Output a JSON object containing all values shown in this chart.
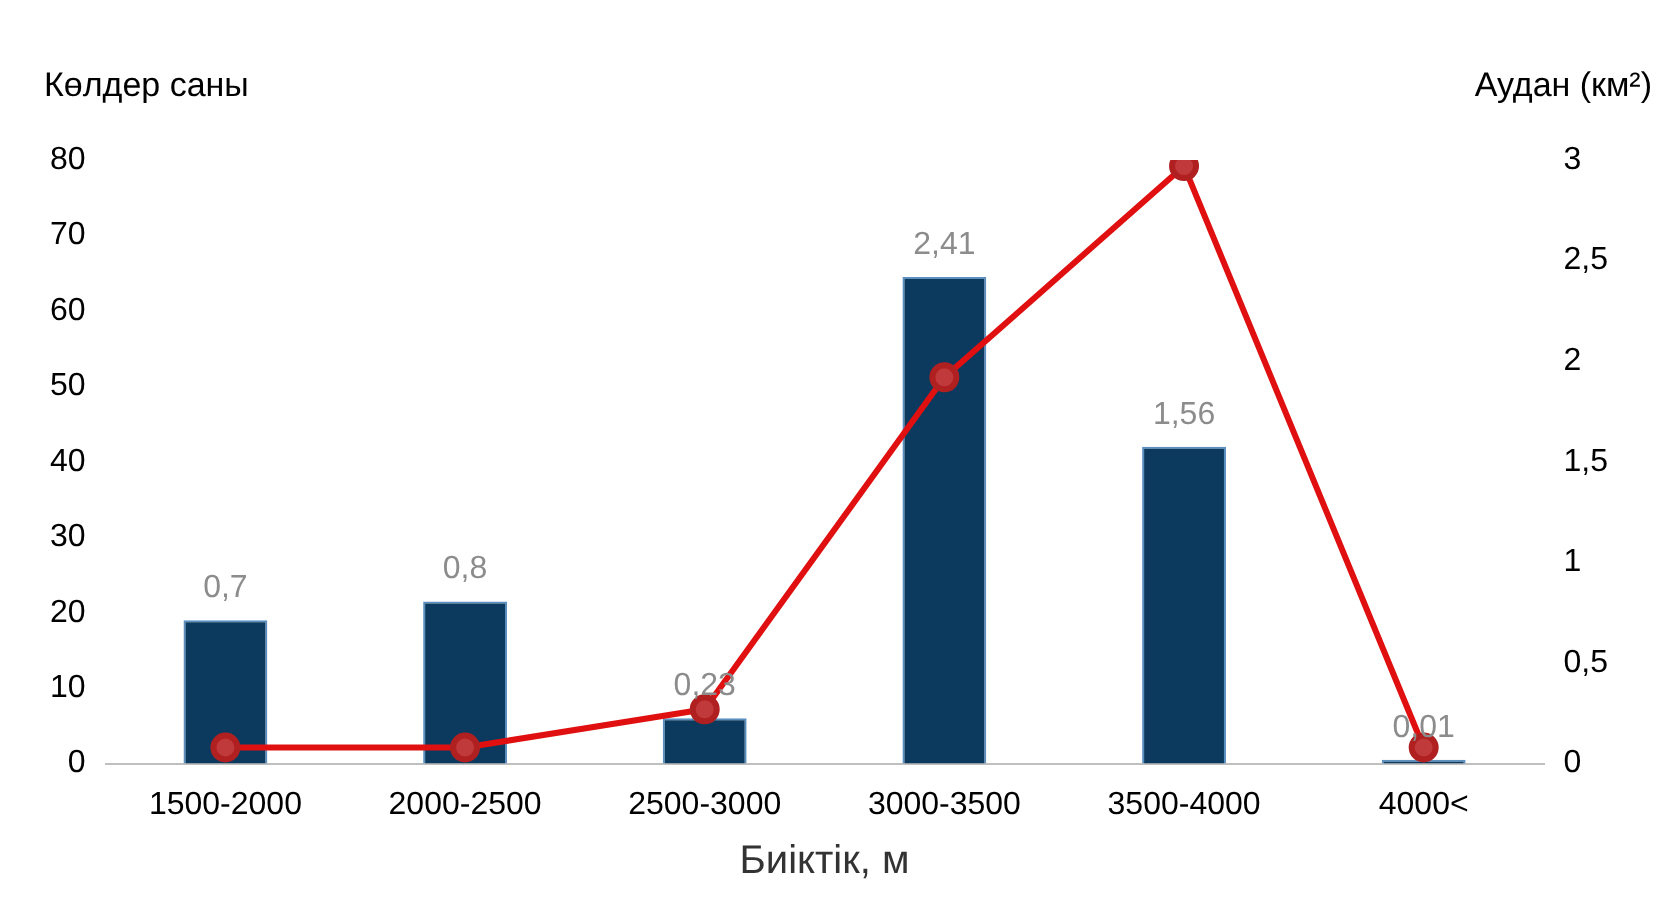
{
  "chart_data": {
    "type": "bar",
    "xlabel": "Биіктік, м",
    "ylabel": "Көлдер саны",
    "y2label": "Аудан (км²)",
    "categories": [
      "1500-2000",
      "2000-2500",
      "2500-3000",
      "3000-3500",
      "3500-4000",
      "4000<"
    ],
    "series": [
      {
        "color": "#0b3a5e",
        "values": [
          19,
          21.5,
          6,
          64.5,
          42,
          0.5
        ]
      },
      {
        "type": "line",
        "axis": "y2",
        "color": "#e01010",
        "marker": "circle",
        "values": [
          0.08,
          0.08,
          0.27,
          1.92,
          2.97,
          0.08
        ]
      }
    ],
    "ylim": [
      0,
      80
    ],
    "yticks": [
      0,
      10,
      20,
      30,
      40,
      50,
      60,
      70,
      80
    ],
    "y2lim": [
      0,
      3
    ],
    "y2ticks": [
      0,
      {
        "value": 0.5,
        "label": "0,5"
      },
      1,
      {
        "value": 1.5,
        "label": "1,5"
      },
      2,
      {
        "value": 2.5,
        "label": "2,5"
      },
      3
    ],
    "annotations": [
      {
        "text": "0,7",
        "x": "1500-2000",
        "y": 19
      },
      {
        "text": "0,8",
        "x": "2000-2500",
        "y": 21.5
      },
      {
        "text": "0,23",
        "x": "2500-3000",
        "y": 6
      },
      {
        "text": "2,41",
        "x": "3000-3500",
        "y": 64.5
      },
      {
        "text": "1,56",
        "x": "3500-4000",
        "y": 42
      },
      {
        "text": "0,01",
        "x": "4000<",
        "y": 0.5
      }
    ],
    "grid": false,
    "legend": false
  }
}
